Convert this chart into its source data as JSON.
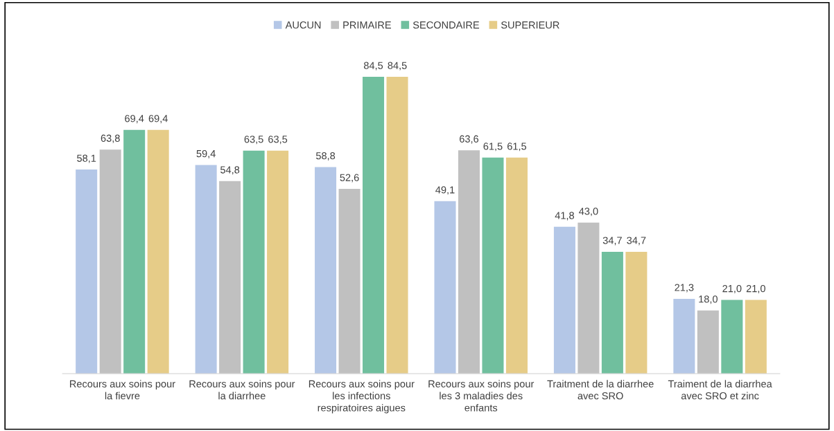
{
  "chart_data": {
    "type": "bar",
    "categories": [
      "Recours aux soins pour la fievre",
      "Recours aux soins pour la diarrhee",
      "Recours aux soins pour les infections respiratoires aigues",
      "Recours aux soins pour les 3 maladies des enfants",
      "Traitment de la diarrhee avec SRO",
      "Traiment de la diarrhea avec SRO et zinc"
    ],
    "series": [
      {
        "name": "AUCUN",
        "color": "#b4c7e7",
        "values": [
          58.1,
          59.4,
          58.8,
          49.1,
          41.8,
          21.3
        ],
        "value_labels": [
          "58,1",
          "59,4",
          "58,8",
          "49,1",
          "41,8",
          "21,3"
        ]
      },
      {
        "name": "PRIMAIRE",
        "color": "#c0c0c0",
        "values": [
          63.8,
          54.8,
          52.6,
          63.6,
          43.0,
          18.0
        ],
        "value_labels": [
          "63,8",
          "54,8",
          "52,6",
          "63,6",
          "43,0",
          "18,0"
        ]
      },
      {
        "name": "SECONDAIRE",
        "color": "#70bf9e",
        "values": [
          69.4,
          63.5,
          84.5,
          61.5,
          34.7,
          21.0
        ],
        "value_labels": [
          "69,4",
          "63,5",
          "84,5",
          "61,5",
          "34,7",
          "21,0"
        ]
      },
      {
        "name": "SUPERIEUR",
        "color": "#e6cc88",
        "values": [
          69.4,
          63.5,
          84.5,
          61.5,
          34.7,
          21.0
        ],
        "value_labels": [
          "69,4",
          "63,5",
          "84,5",
          "61,5",
          "34,7",
          "21,0"
        ]
      }
    ],
    "legend": "top"
  }
}
